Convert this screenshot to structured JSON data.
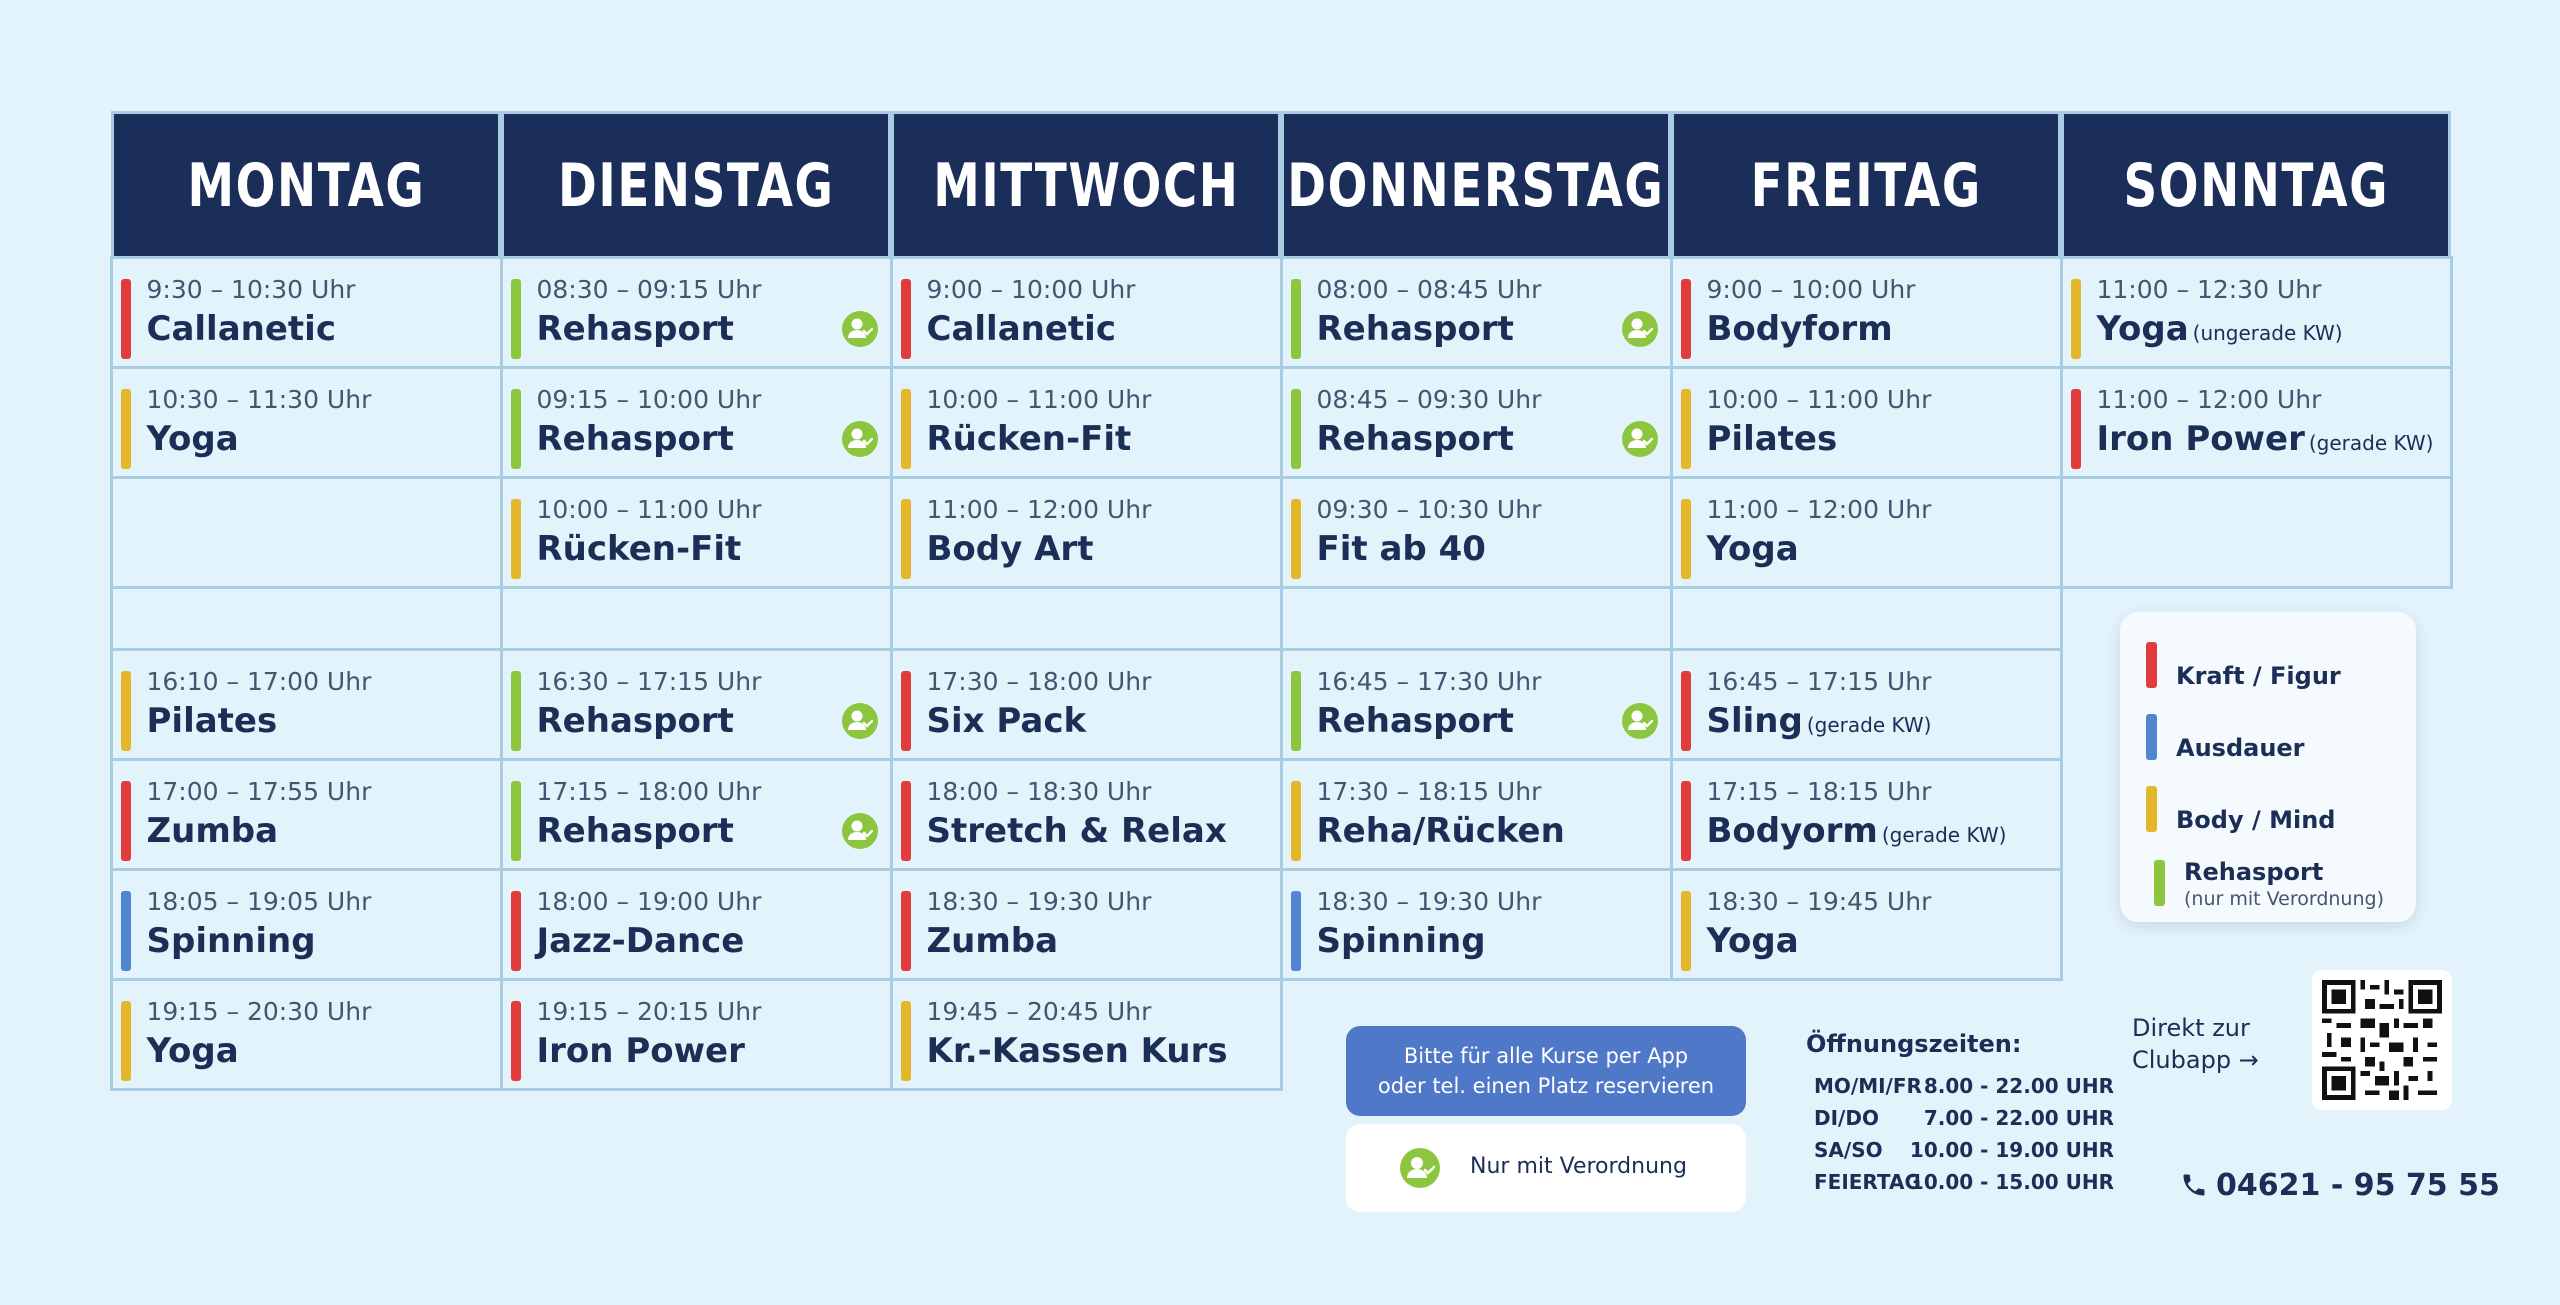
{
  "colors": {
    "kraft": "#e23b3b",
    "ausdauer": "#4f86cf",
    "body_mind": "#e4b62a",
    "rehasport": "#8cc63f",
    "header_bg": "#1b2e5a",
    "page_bg": "#e3f3fb"
  },
  "days": [
    "MONTAG",
    "DIENSTAG",
    "MITTWOCH",
    "DONNERSTAG",
    "FREITAG",
    "SONNTAG"
  ],
  "morning": [
    [
      {
        "time": "9:30 – 10:30 Uhr",
        "name": "Callanetic",
        "cat": "kraft"
      },
      {
        "time": "10:30 – 11:30 Uhr",
        "name": "Yoga",
        "cat": "body_mind"
      },
      null
    ],
    [
      {
        "time": "08:30 – 09:15 Uhr",
        "name": "Rehasport",
        "cat": "rehasport",
        "badge": true
      },
      {
        "time": "09:15 – 10:00 Uhr",
        "name": "Rehasport",
        "cat": "rehasport",
        "badge": true
      },
      {
        "time": "10:00 – 11:00 Uhr",
        "name": "Rücken-Fit",
        "cat": "body_mind"
      }
    ],
    [
      {
        "time": "9:00 – 10:00 Uhr",
        "name": "Callanetic",
        "cat": "kraft"
      },
      {
        "time": "10:00 – 11:00 Uhr",
        "name": "Rücken-Fit",
        "cat": "body_mind"
      },
      {
        "time": "11:00 – 12:00 Uhr",
        "name": "Body Art",
        "cat": "body_mind"
      }
    ],
    [
      {
        "time": "08:00 – 08:45 Uhr",
        "name": "Rehasport",
        "cat": "rehasport",
        "badge": true
      },
      {
        "time": "08:45 – 09:30 Uhr",
        "name": "Rehasport",
        "cat": "rehasport",
        "badge": true
      },
      {
        "time": "09:30 – 10:30 Uhr",
        "name": "Fit ab 40",
        "cat": "body_mind"
      }
    ],
    [
      {
        "time": "9:00 – 10:00 Uhr",
        "name": "Bodyform",
        "cat": "kraft"
      },
      {
        "time": "10:00 – 11:00 Uhr",
        "name": "Pilates",
        "cat": "body_mind"
      },
      {
        "time": "11:00 – 12:00 Uhr",
        "name": "Yoga",
        "cat": "body_mind"
      }
    ],
    [
      {
        "time": "11:00 – 12:30 Uhr",
        "name": "Yoga",
        "note": "(ungerade KW)",
        "cat": "body_mind"
      },
      {
        "time": "11:00 – 12:00 Uhr",
        "name": "Iron Power",
        "note": "(gerade KW)",
        "cat": "kraft"
      },
      null
    ]
  ],
  "evening": [
    [
      {
        "time": "16:10 – 17:00 Uhr",
        "name": "Pilates",
        "cat": "body_mind"
      },
      {
        "time": "17:00 – 17:55 Uhr",
        "name": "Zumba",
        "cat": "kraft"
      },
      {
        "time": "18:05 – 19:05 Uhr",
        "name": "Spinning",
        "cat": "ausdauer"
      },
      {
        "time": "19:15 – 20:30 Uhr",
        "name": "Yoga",
        "cat": "body_mind"
      }
    ],
    [
      {
        "time": "16:30 – 17:15 Uhr",
        "name": "Rehasport",
        "cat": "rehasport",
        "badge": true
      },
      {
        "time": "17:15 – 18:00 Uhr",
        "name": "Rehasport",
        "cat": "rehasport",
        "badge": true
      },
      {
        "time": "18:00 – 19:00 Uhr",
        "name": "Jazz-Dance",
        "cat": "kraft"
      },
      {
        "time": "19:15 – 20:15 Uhr",
        "name": "Iron Power",
        "cat": "kraft"
      }
    ],
    [
      {
        "time": "17:30 – 18:00 Uhr",
        "name": "Six Pack",
        "cat": "kraft"
      },
      {
        "time": "18:00 – 18:30 Uhr",
        "name": "Stretch & Relax",
        "cat": "kraft"
      },
      {
        "time": "18:30 – 19:30 Uhr",
        "name": "Zumba",
        "cat": "kraft"
      },
      {
        "time": "19:45 – 20:45 Uhr",
        "name": "Kr.-Kassen Kurs",
        "cat": "body_mind"
      }
    ],
    [
      {
        "time": "16:45 – 17:30 Uhr",
        "name": "Rehasport",
        "cat": "rehasport",
        "badge": true
      },
      {
        "time": "17:30 – 18:15 Uhr",
        "name": "Reha/Rücken",
        "cat": "body_mind"
      },
      {
        "time": "18:30 – 19:30 Uhr",
        "name": "Spinning",
        "cat": "ausdauer"
      }
    ],
    [
      {
        "time": "16:45 – 17:15 Uhr",
        "name": "Sling",
        "note": "(gerade KW)",
        "cat": "kraft"
      },
      {
        "time": "17:15 – 18:15 Uhr",
        "name": "Bodyorm",
        "note": "(gerade KW)",
        "cat": "kraft"
      },
      {
        "time": "18:30 – 19:45 Uhr",
        "name": "Yoga",
        "cat": "body_mind"
      }
    ]
  ],
  "legend": {
    "kraft": "Kraft / Figur",
    "ausdauer": "Ausdauer",
    "body_mind": "Body / Mind",
    "rehasport": "Rehasport",
    "rehasport_sub": "(nur mit Verordnung)"
  },
  "reserve": {
    "line1": "Bitte für alle Kurse per App",
    "line2": "oder tel. einen Platz reservieren"
  },
  "verordnung_label": "Nur mit Verordnung",
  "hours": {
    "title": "Öffnungszeiten:",
    "rows": [
      {
        "days": "MO/MI/FR",
        "time": "8.00 - 22.00 UHR"
      },
      {
        "days": "DI/DO",
        "time": "7.00 - 22.00 UHR"
      },
      {
        "days": "SA/SO",
        "time": "10.00 - 19.00 UHR"
      },
      {
        "days": "FEIERTAG",
        "time": "10.00 - 15.00 UHR"
      }
    ]
  },
  "direkt": {
    "line1": "Direkt zur",
    "line2": "Clubapp →"
  },
  "phone": "04621 - 95 75 55",
  "icons": {
    "badge": "person-check-icon",
    "qr": "qr-code-icon",
    "phone": "phone-icon"
  }
}
